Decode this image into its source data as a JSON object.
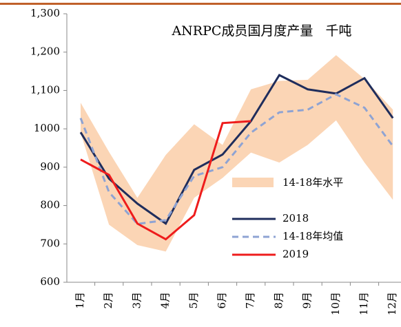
{
  "chart_data": {
    "type": "line",
    "title": "ANRPC成员国月度产量   千吨",
    "categories": [
      "1月",
      "2月",
      "3月",
      "4月",
      "5月",
      "6月",
      "7月",
      "8月",
      "9月",
      "10月",
      "11月",
      "12月"
    ],
    "band": {
      "name": "14-18年水平",
      "color": "#fbd5b5",
      "low": [
        990,
        750,
        697,
        680,
        820,
        872,
        938,
        912,
        958,
        1022,
        912,
        815
      ],
      "high": [
        1068,
        940,
        820,
        932,
        1012,
        958,
        1103,
        1125,
        1128,
        1192,
        1130,
        1050
      ]
    },
    "series": [
      {
        "name": "2018",
        "color": "#1f2d5c",
        "dash": false,
        "values": [
          991,
          870,
          805,
          753,
          893,
          933,
          1020,
          1140,
          1103,
          1092,
          1132,
          1028
        ]
      },
      {
        "name": "14-18年均值",
        "color": "#8ea3d3",
        "dash": true,
        "values": [
          1028,
          835,
          752,
          762,
          877,
          900,
          990,
          1043,
          1050,
          1090,
          1055,
          955
        ]
      },
      {
        "name": "2019",
        "color": "#ee1c1c",
        "dash": false,
        "values": [
          920,
          880,
          753,
          712,
          775,
          1015,
          1020,
          null,
          null,
          null,
          null,
          null
        ]
      }
    ],
    "ylim": [
      600,
      1300
    ],
    "yticks": [
      600,
      700,
      800,
      900,
      1000,
      {
        "value": 1100,
        "label": "1,100"
      },
      {
        "value": 1200,
        "label": "1,200"
      },
      {
        "value": 1300,
        "label": "1,300"
      }
    ]
  }
}
